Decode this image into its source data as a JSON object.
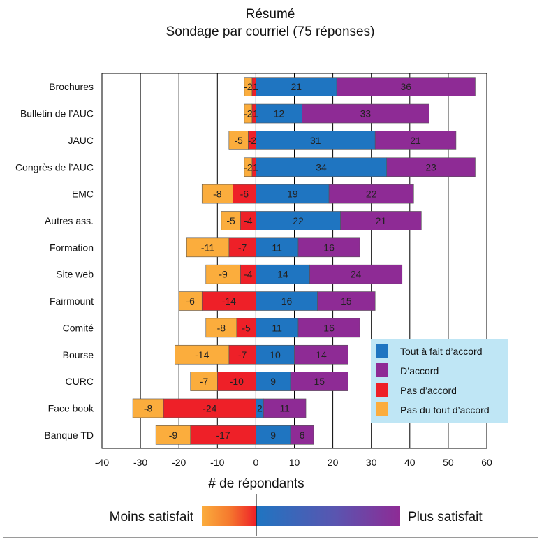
{
  "chart_data": {
    "type": "bar",
    "orientation": "horizontal",
    "stacking": "diverging",
    "title": "Résumé",
    "subtitle": "Sondage par courriel (75 réponses)",
    "xlabel": "# de répondants",
    "xlim": [
      -40,
      60
    ],
    "xticks": [
      -40,
      -30,
      -20,
      -10,
      0,
      10,
      20,
      30,
      40,
      50,
      60
    ],
    "grid": "vertical",
    "legend_position": "right",
    "categories": [
      "Brochures",
      "Bulletin de l’AUC",
      "JAUC",
      "Congrès de l’AUC",
      "EMC",
      "Autres ass.",
      "Formation",
      "Site web",
      "Fairmount",
      "Comité",
      "Bourse",
      "CURC",
      "Face book",
      "Banque TD"
    ],
    "series": [
      {
        "name": "Tout à fait d’accord",
        "color": "#1f75c1",
        "values": [
          21,
          12,
          31,
          34,
          19,
          22,
          11,
          14,
          16,
          11,
          10,
          9,
          2,
          9
        ]
      },
      {
        "name": "D’accord",
        "color": "#8e2b95",
        "values": [
          36,
          33,
          21,
          23,
          22,
          21,
          16,
          24,
          15,
          16,
          14,
          15,
          11,
          6
        ]
      },
      {
        "name": "Pas d’accord",
        "color": "#ee2028",
        "values": [
          -1,
          -1,
          -2,
          -1,
          -6,
          -4,
          -7,
          -4,
          -14,
          -5,
          -7,
          -10,
          -24,
          -17
        ]
      },
      {
        "name": "Pas du tout d’accord",
        "color": "#fbad3d",
        "values": [
          -2,
          -2,
          -5,
          -2,
          -8,
          -5,
          -11,
          -9,
          -6,
          -8,
          -14,
          -7,
          -8,
          -9
        ]
      }
    ],
    "scale_bar": {
      "left_label": "Moins satisfait",
      "right_label": "Plus satisfait"
    }
  }
}
